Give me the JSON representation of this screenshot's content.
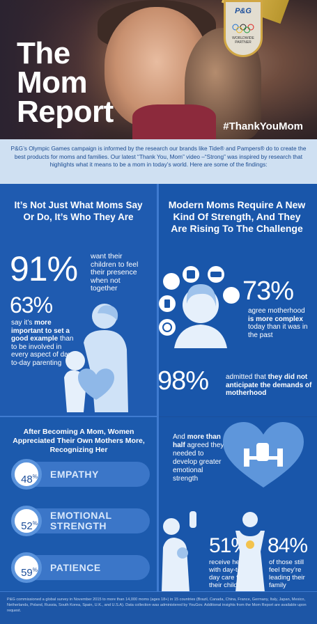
{
  "hero": {
    "title_line1": "The",
    "title_line2": "Mom",
    "title_line3": "Report",
    "hashtag": "#ThankYouMom",
    "badge_brand": "P&G",
    "badge_text": "WORLDWIDE PARTNER"
  },
  "intro": {
    "text": "P&G’s Olympic Games campaign is informed by the research our brands like Tide® and Pampers® do to create the best products for moms and families. Our latest “Thank You, Mom” video –“Strong” was inspired by research that highlights what it means to be a mom in today’s world. Here are some of the findings:"
  },
  "left_section": {
    "heading": "It’s Not Just What Moms Say Or Do, It’s Who They Are",
    "stat1": {
      "value": "91%",
      "text": "want their children to feel their presence when not together"
    },
    "stat2": {
      "value": "63%",
      "text_pre": "say it’s ",
      "text_bold": "more important to set a good example",
      "text_post": " than to be involved in every aspect of day-to-day parenting"
    }
  },
  "right_section": {
    "heading": "Modern Moms Require A New Kind Of Strength, And They Are Rising To The Challenge",
    "stat1": {
      "value": "73%",
      "text_pre": "agree motherhood ",
      "text_bold": "is more complex",
      "text_post": " today than it was in the past"
    },
    "stat2": {
      "value": "98%",
      "text_pre": "admitted that ",
      "text_bold": "they did not anticipate the demands of motherhood"
    }
  },
  "appreciation": {
    "heading": "After Becoming A Mom, Women Appreciated Their Own Mothers More, Recognizing Her",
    "traits": [
      {
        "pct": "48",
        "name": "EMPATHY"
      },
      {
        "pct": "52",
        "name": "EMOTIONAL STRENGTH"
      },
      {
        "pct": "59",
        "name": "PATIENCE"
      }
    ]
  },
  "strength": {
    "text_pre": "And ",
    "text_bold": "more than half",
    "text_post": " agreed they needed to develop greater emotional strength"
  },
  "help": {
    "stat1": {
      "value": "51%",
      "text": "receive help with day-to-day care for their children"
    },
    "stat2": {
      "value": "84%",
      "text": "of those still feel they’re leading their family"
    }
  },
  "footer": {
    "text": "P&G commissioned a global survey in November 2015 to more than 14,000 moms (ages 18+) in 15 countries (Brazil, Canada, China, France, Germany, Italy, Japan, Mexico, Netherlands, Poland, Russia, South Korea, Spain, U.K., and U.S.A). Data collection was administered by YouGov. Additional insights from the Mom Report are available upon request."
  },
  "colors": {
    "background": "#1b4f9c",
    "intro_bg": "#cfe0f2",
    "accent_light": "#5a93dc"
  }
}
